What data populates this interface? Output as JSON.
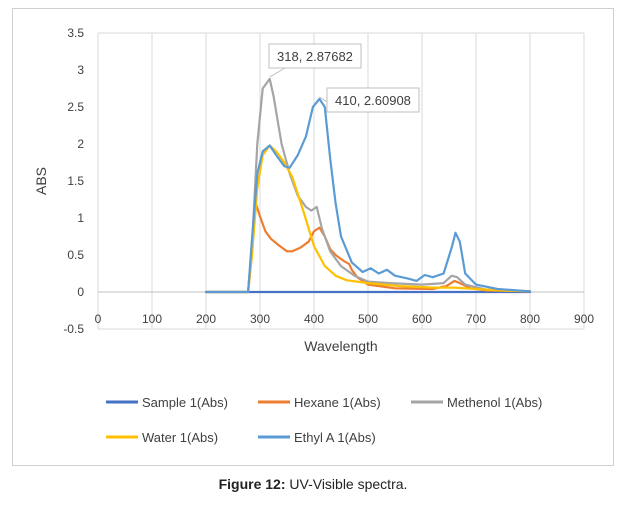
{
  "chart_data": {
    "type": "line",
    "xlabel": "Wavelength",
    "ylabel": "ABS",
    "xlim": [
      0,
      900
    ],
    "ylim": [
      -0.5,
      3.5
    ],
    "xticks": [
      0,
      100,
      200,
      300,
      400,
      500,
      600,
      700,
      800,
      900
    ],
    "yticks": [
      -0.5,
      0,
      0.5,
      1,
      1.5,
      2,
      2.5,
      3,
      3.5
    ],
    "grid": "vertical",
    "legend_position": "bottom",
    "series": [
      {
        "name": "Sample 1(Abs)",
        "color": "#4472c4",
        "points": [
          [
            200,
            0
          ],
          [
            800,
            0
          ]
        ]
      },
      {
        "name": "Hexane 1(Abs)",
        "color": "#ed7d31",
        "points": [
          [
            200,
            0
          ],
          [
            278,
            0
          ],
          [
            285,
            0.5
          ],
          [
            292,
            1.2
          ],
          [
            300,
            1.02
          ],
          [
            310,
            0.82
          ],
          [
            320,
            0.72
          ],
          [
            335,
            0.63
          ],
          [
            350,
            0.55
          ],
          [
            360,
            0.55
          ],
          [
            375,
            0.6
          ],
          [
            390,
            0.68
          ],
          [
            400,
            0.82
          ],
          [
            410,
            0.87
          ],
          [
            420,
            0.75
          ],
          [
            430,
            0.58
          ],
          [
            440,
            0.5
          ],
          [
            455,
            0.42
          ],
          [
            465,
            0.38
          ],
          [
            470,
            0.3
          ],
          [
            480,
            0.2
          ],
          [
            500,
            0.1
          ],
          [
            550,
            0.05
          ],
          [
            620,
            0.04
          ],
          [
            645,
            0.08
          ],
          [
            660,
            0.15
          ],
          [
            670,
            0.12
          ],
          [
            690,
            0.05
          ],
          [
            720,
            0.02
          ],
          [
            800,
            0.01
          ]
        ]
      },
      {
        "name": "Methenol 1(Abs)",
        "color": "#a5a5a5",
        "points": [
          [
            200,
            0
          ],
          [
            278,
            0
          ],
          [
            285,
            0.6
          ],
          [
            295,
            2.0
          ],
          [
            305,
            2.75
          ],
          [
            318,
            2.88
          ],
          [
            325,
            2.65
          ],
          [
            340,
            2.0
          ],
          [
            355,
            1.6
          ],
          [
            370,
            1.3
          ],
          [
            385,
            1.15
          ],
          [
            395,
            1.1
          ],
          [
            405,
            1.15
          ],
          [
            415,
            0.85
          ],
          [
            430,
            0.55
          ],
          [
            450,
            0.35
          ],
          [
            475,
            0.22
          ],
          [
            500,
            0.14
          ],
          [
            540,
            0.12
          ],
          [
            600,
            0.1
          ],
          [
            640,
            0.12
          ],
          [
            655,
            0.22
          ],
          [
            665,
            0.2
          ],
          [
            680,
            0.1
          ],
          [
            720,
            0.03
          ],
          [
            800,
            0.01
          ]
        ]
      },
      {
        "name": "Water 1(Abs)",
        "color": "#ffc000",
        "points": [
          [
            200,
            0
          ],
          [
            278,
            0
          ],
          [
            285,
            0.5
          ],
          [
            295,
            1.4
          ],
          [
            305,
            1.85
          ],
          [
            318,
            1.98
          ],
          [
            330,
            1.9
          ],
          [
            345,
            1.75
          ],
          [
            360,
            1.55
          ],
          [
            380,
            1.1
          ],
          [
            400,
            0.62
          ],
          [
            420,
            0.35
          ],
          [
            440,
            0.22
          ],
          [
            460,
            0.16
          ],
          [
            500,
            0.12
          ],
          [
            560,
            0.08
          ],
          [
            620,
            0.06
          ],
          [
            660,
            0.06
          ],
          [
            700,
            0.04
          ],
          [
            750,
            0.02
          ],
          [
            800,
            0.01
          ]
        ]
      },
      {
        "name": "Ethyl A 1(Abs)",
        "color": "#5b9bd5",
        "points": [
          [
            200,
            0
          ],
          [
            278,
            0
          ],
          [
            285,
            0.7
          ],
          [
            295,
            1.6
          ],
          [
            305,
            1.9
          ],
          [
            318,
            1.98
          ],
          [
            330,
            1.85
          ],
          [
            345,
            1.7
          ],
          [
            355,
            1.68
          ],
          [
            370,
            1.85
          ],
          [
            385,
            2.1
          ],
          [
            398,
            2.5
          ],
          [
            410,
            2.61
          ],
          [
            420,
            2.5
          ],
          [
            430,
            1.8
          ],
          [
            440,
            1.2
          ],
          [
            450,
            0.75
          ],
          [
            470,
            0.4
          ],
          [
            490,
            0.27
          ],
          [
            505,
            0.32
          ],
          [
            520,
            0.25
          ],
          [
            535,
            0.3
          ],
          [
            550,
            0.22
          ],
          [
            575,
            0.18
          ],
          [
            590,
            0.15
          ],
          [
            605,
            0.23
          ],
          [
            620,
            0.2
          ],
          [
            640,
            0.25
          ],
          [
            655,
            0.6
          ],
          [
            662,
            0.8
          ],
          [
            670,
            0.68
          ],
          [
            680,
            0.25
          ],
          [
            700,
            0.1
          ],
          [
            740,
            0.04
          ],
          [
            800,
            0.01
          ]
        ]
      }
    ],
    "annotations": [
      {
        "text": "318, 2.87682",
        "series": "Methenol 1(Abs)",
        "x": 318,
        "y": 2.87682
      },
      {
        "text": "410, 2.60908",
        "series": "Ethyl A 1(Abs)",
        "x": 410,
        "y": 2.60908
      }
    ]
  },
  "caption": {
    "label": "Figure 12:",
    "text": " UV-Visible spectra."
  }
}
